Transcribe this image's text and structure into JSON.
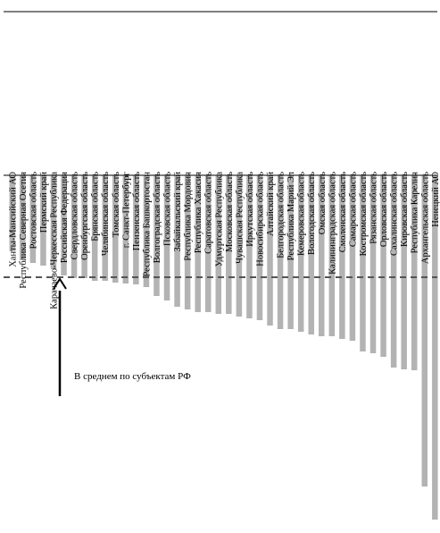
{
  "chart_data": {
    "type": "bar",
    "title": "",
    "xlabel": "",
    "ylabel": "",
    "ylim": [
      -390,
      0
    ],
    "grid": false,
    "categories": [
      "Ханты-Мансийский АО",
      "Республика Северная Осетия",
      "Ростовская область",
      "Пермский край",
      "Карачаево-Черкесская Республика",
      "Российская Федерация",
      "Свердловская область",
      "Оренбургская область",
      "Брянская область",
      "Челябинская область",
      "Томская область",
      "г. Санкт-Петербург",
      "Пензенская область",
      "Республика Башкортостан",
      "Волгоградская область",
      "Псковская область",
      "Забайкальский край",
      "Республика Мордовия",
      "Республика Хакасия",
      "Саратовская область",
      "Удмуртская Республика",
      "Московская область",
      "Чувашская Республика",
      "Иркутская область",
      "Новосибирская область",
      "Алтайский край",
      "Белгородская область",
      "Республика Марий Эл",
      "Кемеровская область",
      "Вологодская область",
      "Омская область",
      "Калининградская область",
      "Смоленская область",
      "Самарская область",
      "Костромская область",
      "Рязанская область",
      "Орловская область",
      "Сахалинская область",
      "Кировская область",
      "Республика Карелия",
      "Архангельская область",
      "Ненецкий АО"
    ],
    "series": [
      {
        "values": [
          -85,
          -95,
          -98,
          -101,
          -105,
          -112,
          -115,
          -115,
          -118,
          -118,
          -120,
          -121,
          -122,
          -125,
          -135,
          -140,
          -147,
          -150,
          -153,
          -153,
          -155,
          -155,
          -158,
          -160,
          -162,
          -168,
          -172,
          -172,
          -175,
          -178,
          -180,
          -180,
          -183,
          -185,
          -197,
          -199,
          -203,
          -215,
          -217,
          -218,
          -348,
          -385
        ],
        "color": "#b3b3b3"
      }
    ],
    "average_line": {
      "value": -114,
      "color": "#555555",
      "style": "dashed"
    },
    "annotation": {
      "text": "В среднем по субъектам РФ"
    }
  }
}
